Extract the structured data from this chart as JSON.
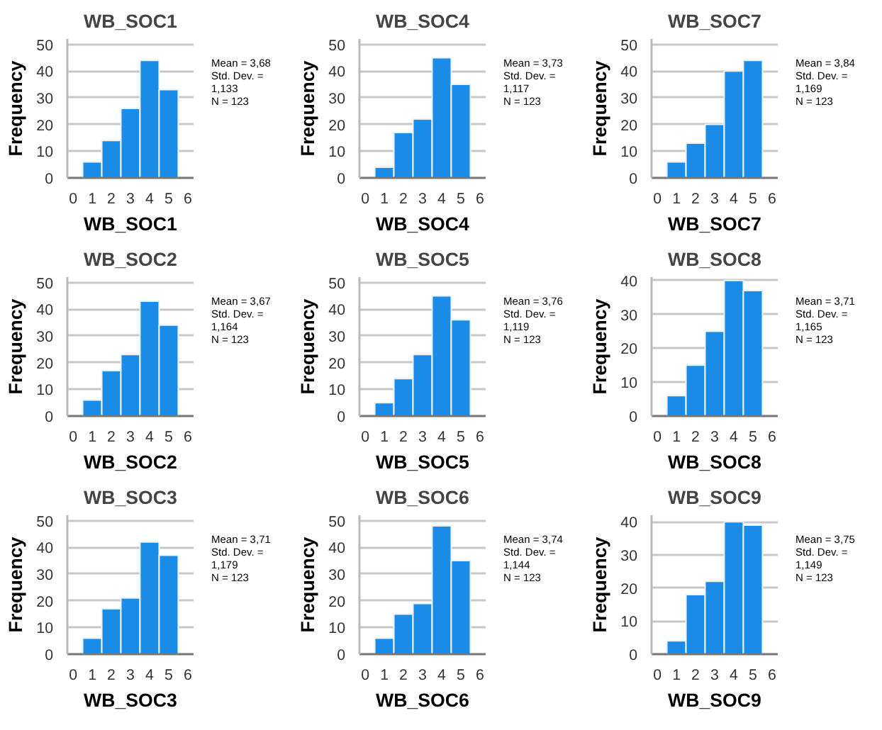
{
  "chart_data": [
    {
      "type": "histogram",
      "title": "WB_SOC1",
      "xlabel": "WB_SOC1",
      "ylabel": "Frequency",
      "bins": [
        0.5,
        1.5,
        2.5,
        3.5,
        4.5,
        5.5
      ],
      "values": [
        6,
        14,
        26,
        44,
        33
      ],
      "color": "#1a8be6",
      "xlim": [
        -0.3,
        6.3
      ],
      "xticks": [
        0,
        1,
        2,
        3,
        4,
        5,
        6
      ],
      "ylim": [
        0,
        52
      ],
      "yticks": [
        0,
        10,
        20,
        30,
        40,
        50
      ],
      "grid": "y",
      "annotations": [
        "Mean = 3,68",
        "Std. Dev. =",
        "1,133",
        "N = 123"
      ]
    },
    {
      "type": "histogram",
      "title": "WB_SOC4",
      "xlabel": "WB_SOC4",
      "ylabel": "Frequency",
      "bins": [
        0.5,
        1.5,
        2.5,
        3.5,
        4.5,
        5.5
      ],
      "values": [
        4,
        17,
        22,
        45,
        35
      ],
      "color": "#1a8be6",
      "xlim": [
        -0.3,
        6.3
      ],
      "xticks": [
        0,
        1,
        2,
        3,
        4,
        5,
        6
      ],
      "ylim": [
        0,
        52
      ],
      "yticks": [
        0,
        10,
        20,
        30,
        40,
        50
      ],
      "grid": "y",
      "annotations": [
        "Mean = 3,73",
        "Std. Dev. =",
        "1,117",
        "N = 123"
      ]
    },
    {
      "type": "histogram",
      "title": "WB_SOC7",
      "xlabel": "WB_SOC7",
      "ylabel": "Frequency",
      "bins": [
        0.5,
        1.5,
        2.5,
        3.5,
        4.5,
        5.5
      ],
      "values": [
        6,
        13,
        20,
        40,
        44
      ],
      "color": "#1a8be6",
      "xlim": [
        -0.3,
        6.3
      ],
      "xticks": [
        0,
        1,
        2,
        3,
        4,
        5,
        6
      ],
      "ylim": [
        0,
        52
      ],
      "yticks": [
        0,
        10,
        20,
        30,
        40,
        50
      ],
      "grid": "y",
      "annotations": [
        "Mean = 3,84",
        "Std. Dev. =",
        "1,169",
        "N = 123"
      ]
    },
    {
      "type": "histogram",
      "title": "WB_SOC2",
      "xlabel": "WB_SOC2",
      "ylabel": "Frequency",
      "bins": [
        0.5,
        1.5,
        2.5,
        3.5,
        4.5,
        5.5
      ],
      "values": [
        6,
        17,
        23,
        43,
        34
      ],
      "color": "#1a8be6",
      "xlim": [
        -0.3,
        6.3
      ],
      "xticks": [
        0,
        1,
        2,
        3,
        4,
        5,
        6
      ],
      "ylim": [
        0,
        52
      ],
      "yticks": [
        0,
        10,
        20,
        30,
        40,
        50
      ],
      "grid": "y",
      "annotations": [
        "Mean = 3,67",
        "Std. Dev. =",
        "1,164",
        "N = 123"
      ]
    },
    {
      "type": "histogram",
      "title": "WB_SOC5",
      "xlabel": "WB_SOC5",
      "ylabel": "Frequency",
      "bins": [
        0.5,
        1.5,
        2.5,
        3.5,
        4.5,
        5.5
      ],
      "values": [
        5,
        14,
        23,
        45,
        36
      ],
      "color": "#1a8be6",
      "xlim": [
        -0.3,
        6.3
      ],
      "xticks": [
        0,
        1,
        2,
        3,
        4,
        5,
        6
      ],
      "ylim": [
        0,
        52
      ],
      "yticks": [
        0,
        10,
        20,
        30,
        40,
        50
      ],
      "grid": "y",
      "annotations": [
        "Mean = 3,76",
        "Std. Dev. =",
        "1,119",
        "N = 123"
      ]
    },
    {
      "type": "histogram",
      "title": "WB_SOC8",
      "xlabel": "WB_SOC8",
      "ylabel": "Frequency",
      "bins": [
        0.5,
        1.5,
        2.5,
        3.5,
        4.5,
        5.5
      ],
      "values": [
        6,
        15,
        25,
        40,
        37
      ],
      "color": "#1a8be6",
      "xlim": [
        -0.3,
        6.3
      ],
      "xticks": [
        0,
        1,
        2,
        3,
        4,
        5,
        6
      ],
      "ylim": [
        0,
        41
      ],
      "yticks": [
        0,
        10,
        20,
        30,
        40
      ],
      "grid": "y",
      "annotations": [
        "Mean = 3,71",
        "Std. Dev. =",
        "1,165",
        "N = 123"
      ]
    },
    {
      "type": "histogram",
      "title": "WB_SOC3",
      "xlabel": "WB_SOC3",
      "ylabel": "Frequency",
      "bins": [
        0.5,
        1.5,
        2.5,
        3.5,
        4.5,
        5.5
      ],
      "values": [
        6,
        17,
        21,
        42,
        37
      ],
      "color": "#1a8be6",
      "xlim": [
        -0.3,
        6.3
      ],
      "xticks": [
        0,
        1,
        2,
        3,
        4,
        5,
        6
      ],
      "ylim": [
        0,
        52
      ],
      "yticks": [
        0,
        10,
        20,
        30,
        40,
        50
      ],
      "grid": "y",
      "annotations": [
        "Mean = 3,71",
        "Std. Dev. =",
        "1,179",
        "N = 123"
      ]
    },
    {
      "type": "histogram",
      "title": "WB_SOC6",
      "xlabel": "WB_SOC6",
      "ylabel": "Frequency",
      "bins": [
        0.5,
        1.5,
        2.5,
        3.5,
        4.5,
        5.5
      ],
      "values": [
        6,
        15,
        19,
        48,
        35
      ],
      "color": "#1a8be6",
      "xlim": [
        -0.3,
        6.3
      ],
      "xticks": [
        0,
        1,
        2,
        3,
        4,
        5,
        6
      ],
      "ylim": [
        0,
        52
      ],
      "yticks": [
        0,
        10,
        20,
        30,
        40,
        50
      ],
      "grid": "y",
      "annotations": [
        "Mean = 3,74",
        "Std. Dev. =",
        "1,144",
        "N = 123"
      ]
    },
    {
      "type": "histogram",
      "title": "WB_SOC9",
      "xlabel": "WB_SOC9",
      "ylabel": "Frequency",
      "bins": [
        0.5,
        1.5,
        2.5,
        3.5,
        4.5,
        5.5
      ],
      "values": [
        4,
        18,
        22,
        40,
        39
      ],
      "color": "#1a8be6",
      "xlim": [
        -0.3,
        6.3
      ],
      "xticks": [
        0,
        1,
        2,
        3,
        4,
        5,
        6
      ],
      "ylim": [
        0,
        42
      ],
      "yticks": [
        0,
        10,
        20,
        30,
        40
      ],
      "grid": "y",
      "annotations": [
        "Mean = 3,75",
        "Std. Dev. =",
        "1,149",
        "N = 123"
      ]
    }
  ]
}
